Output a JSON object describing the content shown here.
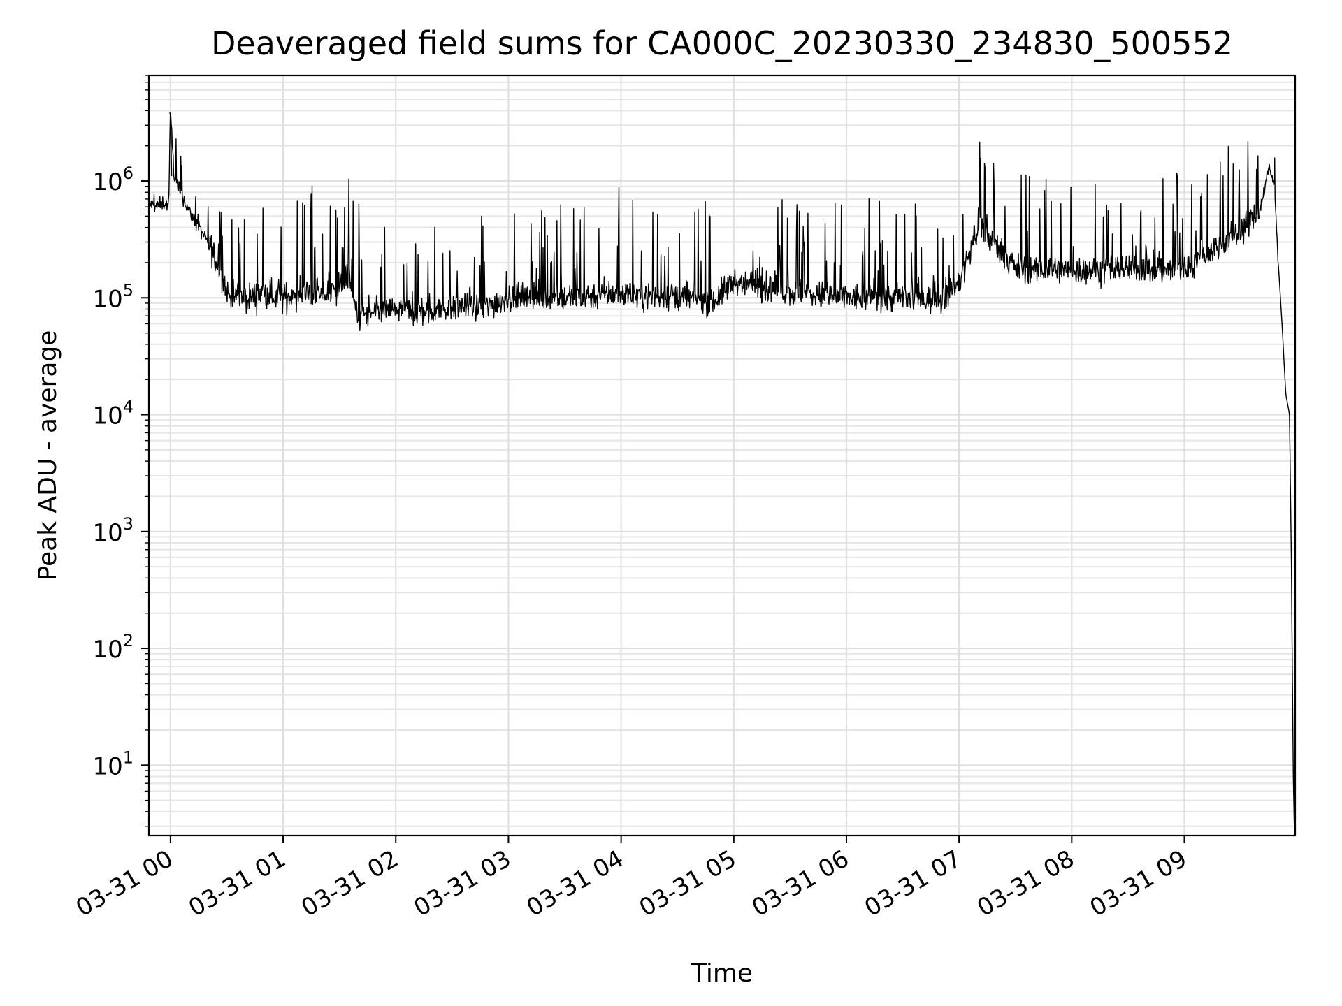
{
  "chart_data": {
    "type": "line",
    "title": "Deaveraged field sums for CA000C_20230330_234830_500552",
    "xlabel": "Time",
    "ylabel": "Peak ADU - average",
    "y_scale": "log",
    "ylim": [
      2.5,
      8000000
    ],
    "xlim": [
      "03-30 23:48:30",
      "03-31 09:59:00"
    ],
    "grid": true,
    "line_color": "#000000",
    "x_ticks": [
      {
        "label": "03-31 00",
        "t": "03-31 00:00"
      },
      {
        "label": "03-31 01",
        "t": "03-31 01:00"
      },
      {
        "label": "03-31 02",
        "t": "03-31 02:00"
      },
      {
        "label": "03-31 03",
        "t": "03-31 03:00"
      },
      {
        "label": "03-31 04",
        "t": "03-31 04:00"
      },
      {
        "label": "03-31 05",
        "t": "03-31 05:00"
      },
      {
        "label": "03-31 06",
        "t": "03-31 06:00"
      },
      {
        "label": "03-31 07",
        "t": "03-31 07:00"
      },
      {
        "label": "03-31 08",
        "t": "03-31 08:00"
      },
      {
        "label": "03-31 09",
        "t": "03-31 09:00"
      }
    ],
    "y_ticks": [
      {
        "base": "10",
        "exp": "1",
        "value": 10
      },
      {
        "base": "10",
        "exp": "2",
        "value": 100
      },
      {
        "base": "10",
        "exp": "3",
        "value": 1000
      },
      {
        "base": "10",
        "exp": "4",
        "value": 10000
      },
      {
        "base": "10",
        "exp": "5",
        "value": 100000
      },
      {
        "base": "10",
        "exp": "6",
        "value": 1000000
      }
    ],
    "series": [
      {
        "x": [
          "03-30 23:48:30",
          "03-30 23:52",
          "03-30 23:56",
          "03-30 23:59",
          "03-31 00:00",
          "03-31 00:02",
          "03-31 00:05",
          "03-31 00:10",
          "03-31 00:15",
          "03-31 00:20",
          "03-31 00:25",
          "03-31 00:30",
          "03-31 00:35",
          "03-31 00:40",
          "03-31 00:50",
          "03-31 01:00",
          "03-31 01:10",
          "03-31 01:20",
          "03-31 01:30",
          "03-31 01:35",
          "03-31 01:40",
          "03-31 02:00",
          "03-31 02:15",
          "03-31 02:30",
          "03-31 02:45",
          "03-31 03:00",
          "03-31 03:30",
          "03-31 04:00",
          "03-31 04:30",
          "03-31 04:50",
          "03-31 05:00",
          "03-31 05:30",
          "03-31 06:00",
          "03-31 06:30",
          "03-31 06:50",
          "03-31 07:00",
          "03-31 07:10",
          "03-31 07:20",
          "03-31 07:30",
          "03-31 08:00",
          "03-31 08:30",
          "03-31 09:00",
          "03-31 09:30",
          "03-31 09:40",
          "03-31 09:45",
          "03-31 09:48",
          "03-31 09:50",
          "03-31 09:52",
          "03-31 09:54",
          "03-31 09:56",
          "03-31 09:57",
          "03-31 09:58",
          "03-31 09:58:30"
        ],
        "y": [
          650000,
          600000,
          650000,
          620000,
          3800000,
          1100000,
          800000,
          550000,
          400000,
          300000,
          200000,
          110000,
          100000,
          100000,
          110000,
          100000,
          110000,
          105000,
          120000,
          150000,
          70000,
          80000,
          75000,
          85000,
          80000,
          100000,
          100000,
          110000,
          100000,
          95000,
          140000,
          110000,
          100000,
          100000,
          95000,
          130000,
          400000,
          280000,
          180000,
          170000,
          180000,
          175000,
          380000,
          550000,
          1300000,
          900000,
          200000,
          60000,
          15000,
          10000,
          500,
          8,
          3
        ]
      }
    ]
  }
}
